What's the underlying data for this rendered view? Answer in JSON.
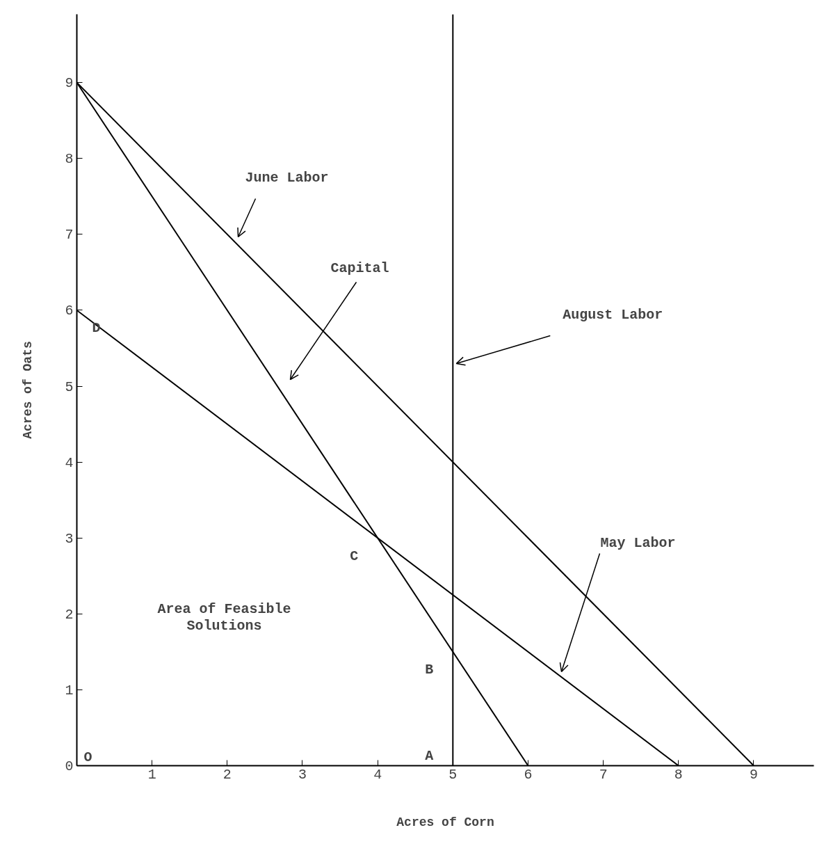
{
  "chart_data": {
    "type": "line",
    "xlabel": "Acres of Corn",
    "ylabel": "Acres of Oats",
    "series": [
      {
        "x": [
          0,
          9
        ],
        "values": [
          9,
          0
        ],
        "color": "#000000"
      },
      {
        "x": [
          0,
          6
        ],
        "values": [
          9,
          0
        ],
        "color": "#000000"
      },
      {
        "x": [
          0,
          8
        ],
        "values": [
          6,
          0
        ],
        "color": "#000000"
      }
    ],
    "ref_lines": [
      {
        "axis": "x",
        "value": 5,
        "label": "August Labor",
        "color": "#000000"
      }
    ],
    "annotations": [
      "June Labor",
      "Capital",
      "May Labor",
      "Area of Feasible\nSolutions",
      "O",
      {
        "text": "A",
        "x": 5,
        "y": 0
      },
      {
        "text": "B",
        "x": 5,
        "y": 1.5
      },
      {
        "text": "C",
        "x": 4,
        "y": 3
      },
      {
        "text": "D",
        "x": 0,
        "y": 6
      }
    ],
    "xlim": [
      0,
      9.8
    ],
    "ylim": [
      0,
      9.9
    ],
    "xticks": [
      1,
      2,
      3,
      4,
      5,
      6,
      7,
      8,
      9
    ],
    "yticks": [
      0,
      1,
      2,
      3,
      4,
      5,
      6,
      7,
      8,
      9
    ],
    "grid": false,
    "marker": "none",
    "line_style": "solid"
  }
}
